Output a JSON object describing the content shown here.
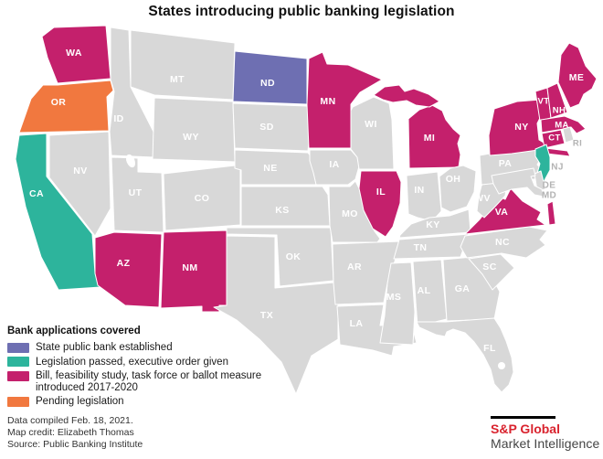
{
  "title": "States introducing public banking legislation",
  "legend": {
    "header": "Bank applications covered",
    "items": [
      {
        "key": "established",
        "label": "State public bank established",
        "color": "#6e6fb2"
      },
      {
        "key": "passed",
        "label": "Legislation passed, executive order given",
        "color": "#2db49c"
      },
      {
        "key": "introduced",
        "label": "Bill, feasibility study, task force or ballot measure introduced 2017-2020",
        "color": "#c4206c"
      },
      {
        "key": "pending",
        "label": "Pending legislation",
        "color": "#f1783f"
      }
    ]
  },
  "map": {
    "default_fill": "#d8d8d8",
    "state_label_color": "#ffffff",
    "outside_label_color": "#b3b3b3",
    "states": [
      {
        "abbr": "WA",
        "category": "introduced"
      },
      {
        "abbr": "OR",
        "category": "pending"
      },
      {
        "abbr": "CA",
        "category": "passed"
      },
      {
        "abbr": "NV",
        "category": "none"
      },
      {
        "abbr": "ID",
        "category": "none"
      },
      {
        "abbr": "MT",
        "category": "none"
      },
      {
        "abbr": "WY",
        "category": "none"
      },
      {
        "abbr": "UT",
        "category": "none"
      },
      {
        "abbr": "CO",
        "category": "none"
      },
      {
        "abbr": "AZ",
        "category": "introduced"
      },
      {
        "abbr": "NM",
        "category": "introduced"
      },
      {
        "abbr": "ND",
        "category": "established"
      },
      {
        "abbr": "SD",
        "category": "none"
      },
      {
        "abbr": "NE",
        "category": "none"
      },
      {
        "abbr": "KS",
        "category": "none"
      },
      {
        "abbr": "OK",
        "category": "none"
      },
      {
        "abbr": "TX",
        "category": "none"
      },
      {
        "abbr": "MN",
        "category": "introduced"
      },
      {
        "abbr": "IA",
        "category": "none"
      },
      {
        "abbr": "MO",
        "category": "none"
      },
      {
        "abbr": "AR",
        "category": "none"
      },
      {
        "abbr": "LA",
        "category": "none"
      },
      {
        "abbr": "WI",
        "category": "none"
      },
      {
        "abbr": "IL",
        "category": "introduced"
      },
      {
        "abbr": "MI",
        "category": "introduced"
      },
      {
        "abbr": "IN",
        "category": "none"
      },
      {
        "abbr": "OH",
        "category": "none"
      },
      {
        "abbr": "KY",
        "category": "none"
      },
      {
        "abbr": "TN",
        "category": "none"
      },
      {
        "abbr": "MS",
        "category": "none"
      },
      {
        "abbr": "AL",
        "category": "none"
      },
      {
        "abbr": "GA",
        "category": "none"
      },
      {
        "abbr": "FL",
        "category": "none"
      },
      {
        "abbr": "SC",
        "category": "none"
      },
      {
        "abbr": "NC",
        "category": "none"
      },
      {
        "abbr": "VA",
        "category": "introduced"
      },
      {
        "abbr": "WV",
        "category": "none"
      },
      {
        "abbr": "PA",
        "category": "none"
      },
      {
        "abbr": "NY",
        "category": "introduced"
      },
      {
        "abbr": "VT",
        "category": "introduced"
      },
      {
        "abbr": "NH",
        "category": "introduced"
      },
      {
        "abbr": "ME",
        "category": "introduced"
      },
      {
        "abbr": "MA",
        "category": "introduced"
      },
      {
        "abbr": "CT",
        "category": "introduced"
      },
      {
        "abbr": "RI",
        "category": "none"
      },
      {
        "abbr": "NJ",
        "category": "passed"
      },
      {
        "abbr": "DE",
        "category": "none"
      },
      {
        "abbr": "MD",
        "category": "none"
      }
    ]
  },
  "footer": {
    "lines": [
      "Data compiled Feb. 18, 2021.",
      "Map credit: Elizabeth Thomas",
      "Source: Public Banking Institute"
    ]
  },
  "branding": {
    "company": "S&P Global",
    "division": "Market Intelligence",
    "company_color": "#d9232e"
  }
}
